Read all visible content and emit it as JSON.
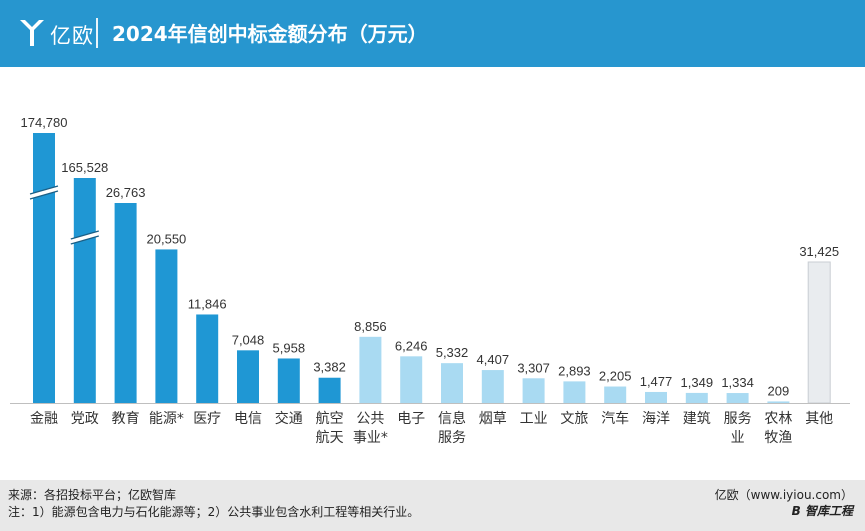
{
  "header": {
    "logo_text": "亿欧",
    "title": "2024年信创中标金额分布（万元）"
  },
  "colors": {
    "header_bg": "#2796cf",
    "bar_dark": "#1f97d4",
    "bar_light": "#a9daf2",
    "bar_other": "#e9ecef",
    "footer_bg": "#e8e8e8"
  },
  "chart_data": {
    "type": "bar",
    "title": "2024年信创中标金额分布（万元）",
    "categories": [
      [
        "金融"
      ],
      [
        "党政"
      ],
      [
        "教育"
      ],
      [
        "能源*"
      ],
      [
        "医疗"
      ],
      [
        "电信"
      ],
      [
        "交通"
      ],
      [
        "航空",
        "航天"
      ],
      [
        "公共",
        "事业*"
      ],
      [
        "电子"
      ],
      [
        "信息",
        "服务"
      ],
      [
        "烟草"
      ],
      [
        "工业"
      ],
      [
        "文旅"
      ],
      [
        "汽车"
      ],
      [
        "海洋"
      ],
      [
        "建筑"
      ],
      [
        "服务",
        "业"
      ],
      [
        "农林",
        "牧渔"
      ],
      [
        "其他"
      ]
    ],
    "values": [
      174780,
      165528,
      26763,
      20550,
      11846,
      7048,
      5958,
      3382,
      8856,
      6246,
      5332,
      4407,
      3307,
      2893,
      2205,
      1477,
      1349,
      1334,
      209,
      31425
    ],
    "value_labels": [
      "174,780",
      "165,528",
      "26,763",
      "20,550",
      "11,846",
      "7,048",
      "5,958",
      "3,382",
      "8,856",
      "6,246",
      "5,332",
      "4,407",
      "3,307",
      "2,893",
      "2,205",
      "1,477",
      "1,349",
      "1,334",
      "209",
      "31,425"
    ],
    "color_groups": [
      "dark",
      "dark",
      "dark",
      "dark",
      "dark",
      "dark",
      "dark",
      "dark",
      "light",
      "light",
      "light",
      "light",
      "light",
      "light",
      "light",
      "light",
      "light",
      "light",
      "light",
      "other"
    ],
    "broken_axis": [
      true,
      true,
      false,
      false,
      false,
      false,
      false,
      false,
      false,
      false,
      false,
      false,
      false,
      false,
      false,
      false,
      false,
      false,
      false,
      false
    ],
    "xlabel": "",
    "ylabel": "",
    "grid": false,
    "legend": "none"
  },
  "footer": {
    "source": "来源：各招投标平台；亿欧智库",
    "note": "注：1）能源包含电力与石化能源等；2）公共事业包含水利工程等相关行业。",
    "credit": "亿欧（www.iyiou.com）",
    "credit_brand": "B 智库工程"
  }
}
